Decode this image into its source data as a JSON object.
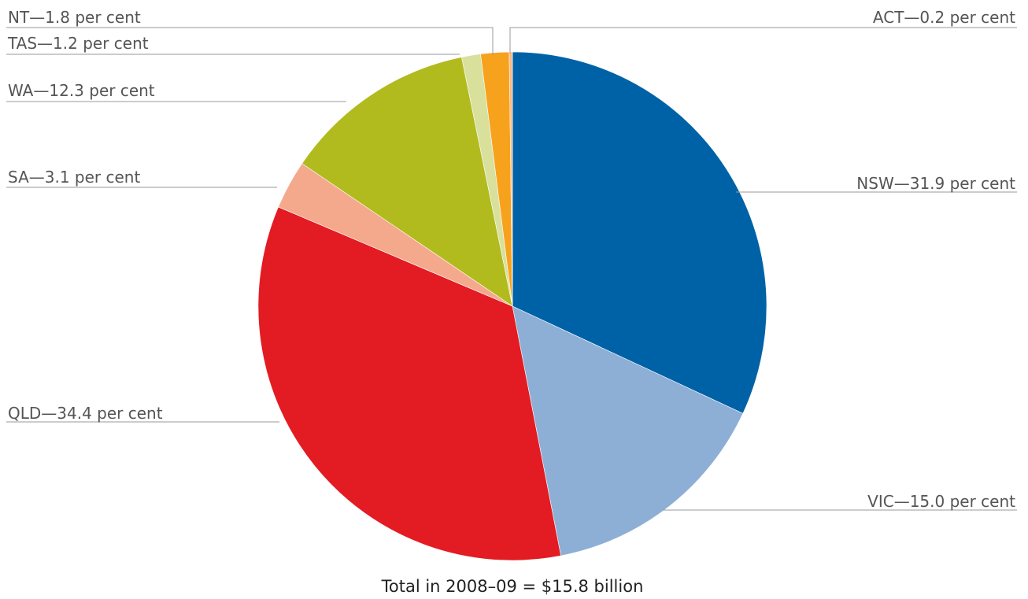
{
  "chart_data": {
    "type": "pie",
    "slices": [
      {
        "label": "NSW—31.9 per cent",
        "name": "NSW",
        "value": 31.9,
        "color": "#0062a6"
      },
      {
        "label": "VIC—15.0 per cent",
        "name": "VIC",
        "value": 15.0,
        "color": "#8dafd6"
      },
      {
        "label": "QLD—34.4 per cent",
        "name": "QLD",
        "value": 34.4,
        "color": "#e31b23"
      },
      {
        "label": "SA—3.1 per cent",
        "name": "SA",
        "value": 3.1,
        "color": "#f4a98c"
      },
      {
        "label": "WA—12.3 per cent",
        "name": "WA",
        "value": 12.3,
        "color": "#b1bb1e"
      },
      {
        "label": "TAS—1.2 per cent",
        "name": "TAS",
        "value": 1.2,
        "color": "#d8e09c"
      },
      {
        "label": "NT—1.8 per cent",
        "name": "NT",
        "value": 1.8,
        "color": "#f7a21d"
      },
      {
        "label": "ACT—0.2 per cent",
        "name": "ACT",
        "value": 0.2,
        "color": "#f6b98a"
      }
    ],
    "total_note": "Total in 2008–09 = $15.8 billion"
  }
}
